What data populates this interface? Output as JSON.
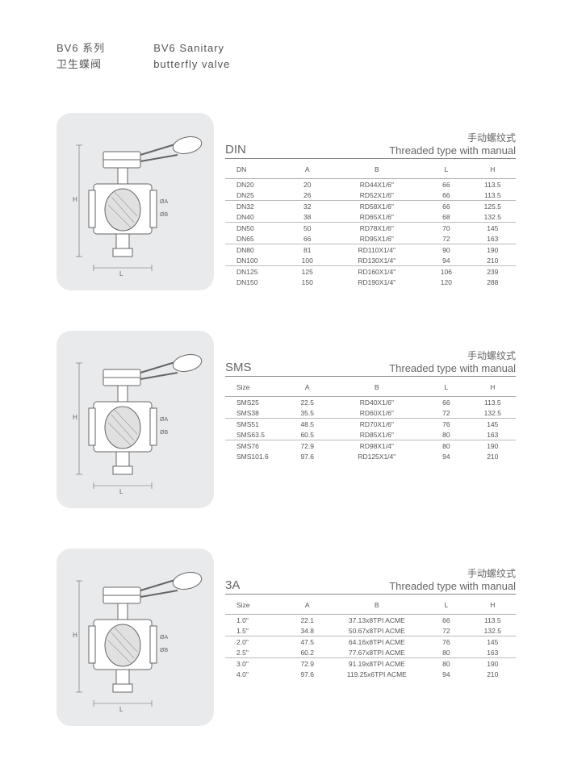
{
  "header": {
    "title_cn_line1": "BV6 系列",
    "title_cn_line2": "卫生蝶阀",
    "title_en_line1": "BV6 Sanitary",
    "title_en_line2": "butterfly valve"
  },
  "diagram": {
    "stroke": "#666666",
    "fill_light": "#ffffff",
    "fill_hatch": "#d0d0d0",
    "bg": "#e9eaec",
    "label_H": "H",
    "label_L": "L",
    "label_OA": "ØA",
    "label_OB": "ØB"
  },
  "sections": [
    {
      "standard": "DIN",
      "subtitle_cn": "手动螺纹式",
      "subtitle_en": "Threaded type with manual",
      "columns": [
        "DN",
        "A",
        "B",
        "L",
        "H"
      ],
      "groups": [
        [
          [
            "DN20",
            "20",
            "RD44X1/6\"",
            "66",
            "113.5"
          ],
          [
            "DN25",
            "26",
            "RD52X1/6\"",
            "66",
            "113.5"
          ]
        ],
        [
          [
            "DN32",
            "32",
            "RD58X1/6\"",
            "66",
            "125.5"
          ],
          [
            "DN40",
            "38",
            "RD65X1/6\"",
            "68",
            "132.5"
          ]
        ],
        [
          [
            "DN50",
            "50",
            "RD78X1/6\"",
            "70",
            "145"
          ],
          [
            "DN65",
            "66",
            "RD95X1/6\"",
            "72",
            "163"
          ]
        ],
        [
          [
            "DN80",
            "81",
            "RD110X1/4\"",
            "90",
            "190"
          ],
          [
            "DN100",
            "100",
            "RD130X1/4\"",
            "94",
            "210"
          ]
        ],
        [
          [
            "DN125",
            "125",
            "RD160X1/4\"",
            "106",
            "239"
          ],
          [
            "DN150",
            "150",
            "RD190X1/4\"",
            "120",
            "288"
          ]
        ]
      ]
    },
    {
      "standard": "SMS",
      "subtitle_cn": "手动螺纹式",
      "subtitle_en": "Threaded type with manual",
      "columns": [
        "Size",
        "A",
        "B",
        "L",
        "H"
      ],
      "groups": [
        [
          [
            "SMS25",
            "22.5",
            "RD40X1/6\"",
            "66",
            "113.5"
          ],
          [
            "SMS38",
            "35.5",
            "RD60X1/6\"",
            "72",
            "132.5"
          ]
        ],
        [
          [
            "SMS51",
            "48.5",
            "RD70X1/6\"",
            "76",
            "145"
          ],
          [
            "SMS63.5",
            "60.5",
            "RD85X1/6\"",
            "80",
            "163"
          ]
        ],
        [
          [
            "SMS76",
            "72.9",
            "RD98X1/4\"",
            "80",
            "190"
          ],
          [
            "SMS101.6",
            "97.6",
            "RD125X1/4\"",
            "94",
            "210"
          ]
        ]
      ]
    },
    {
      "standard": "3A",
      "subtitle_cn": "手动螺纹式",
      "subtitle_en": "Threaded type with manual",
      "columns": [
        "Size",
        "A",
        "B",
        "L",
        "H"
      ],
      "groups": [
        [
          [
            "1.0\"",
            "22.1",
            "37.13x8TPI ACME",
            "66",
            "113.5"
          ],
          [
            "1.5\"",
            "34.8",
            "50.67x8TPI ACME",
            "72",
            "132.5"
          ]
        ],
        [
          [
            "2.0\"",
            "47.5",
            "64.16x8TPI ACME",
            "76",
            "145"
          ],
          [
            "2.5\"",
            "60.2",
            "77.67x8TPI ACME",
            "80",
            "163"
          ]
        ],
        [
          [
            "3.0\"",
            "72.9",
            "91.19x8TPI ACME",
            "80",
            "190"
          ],
          [
            "4.0\"",
            "97.6",
            "119.25x6TPI ACME",
            "94",
            "210"
          ]
        ]
      ]
    }
  ]
}
